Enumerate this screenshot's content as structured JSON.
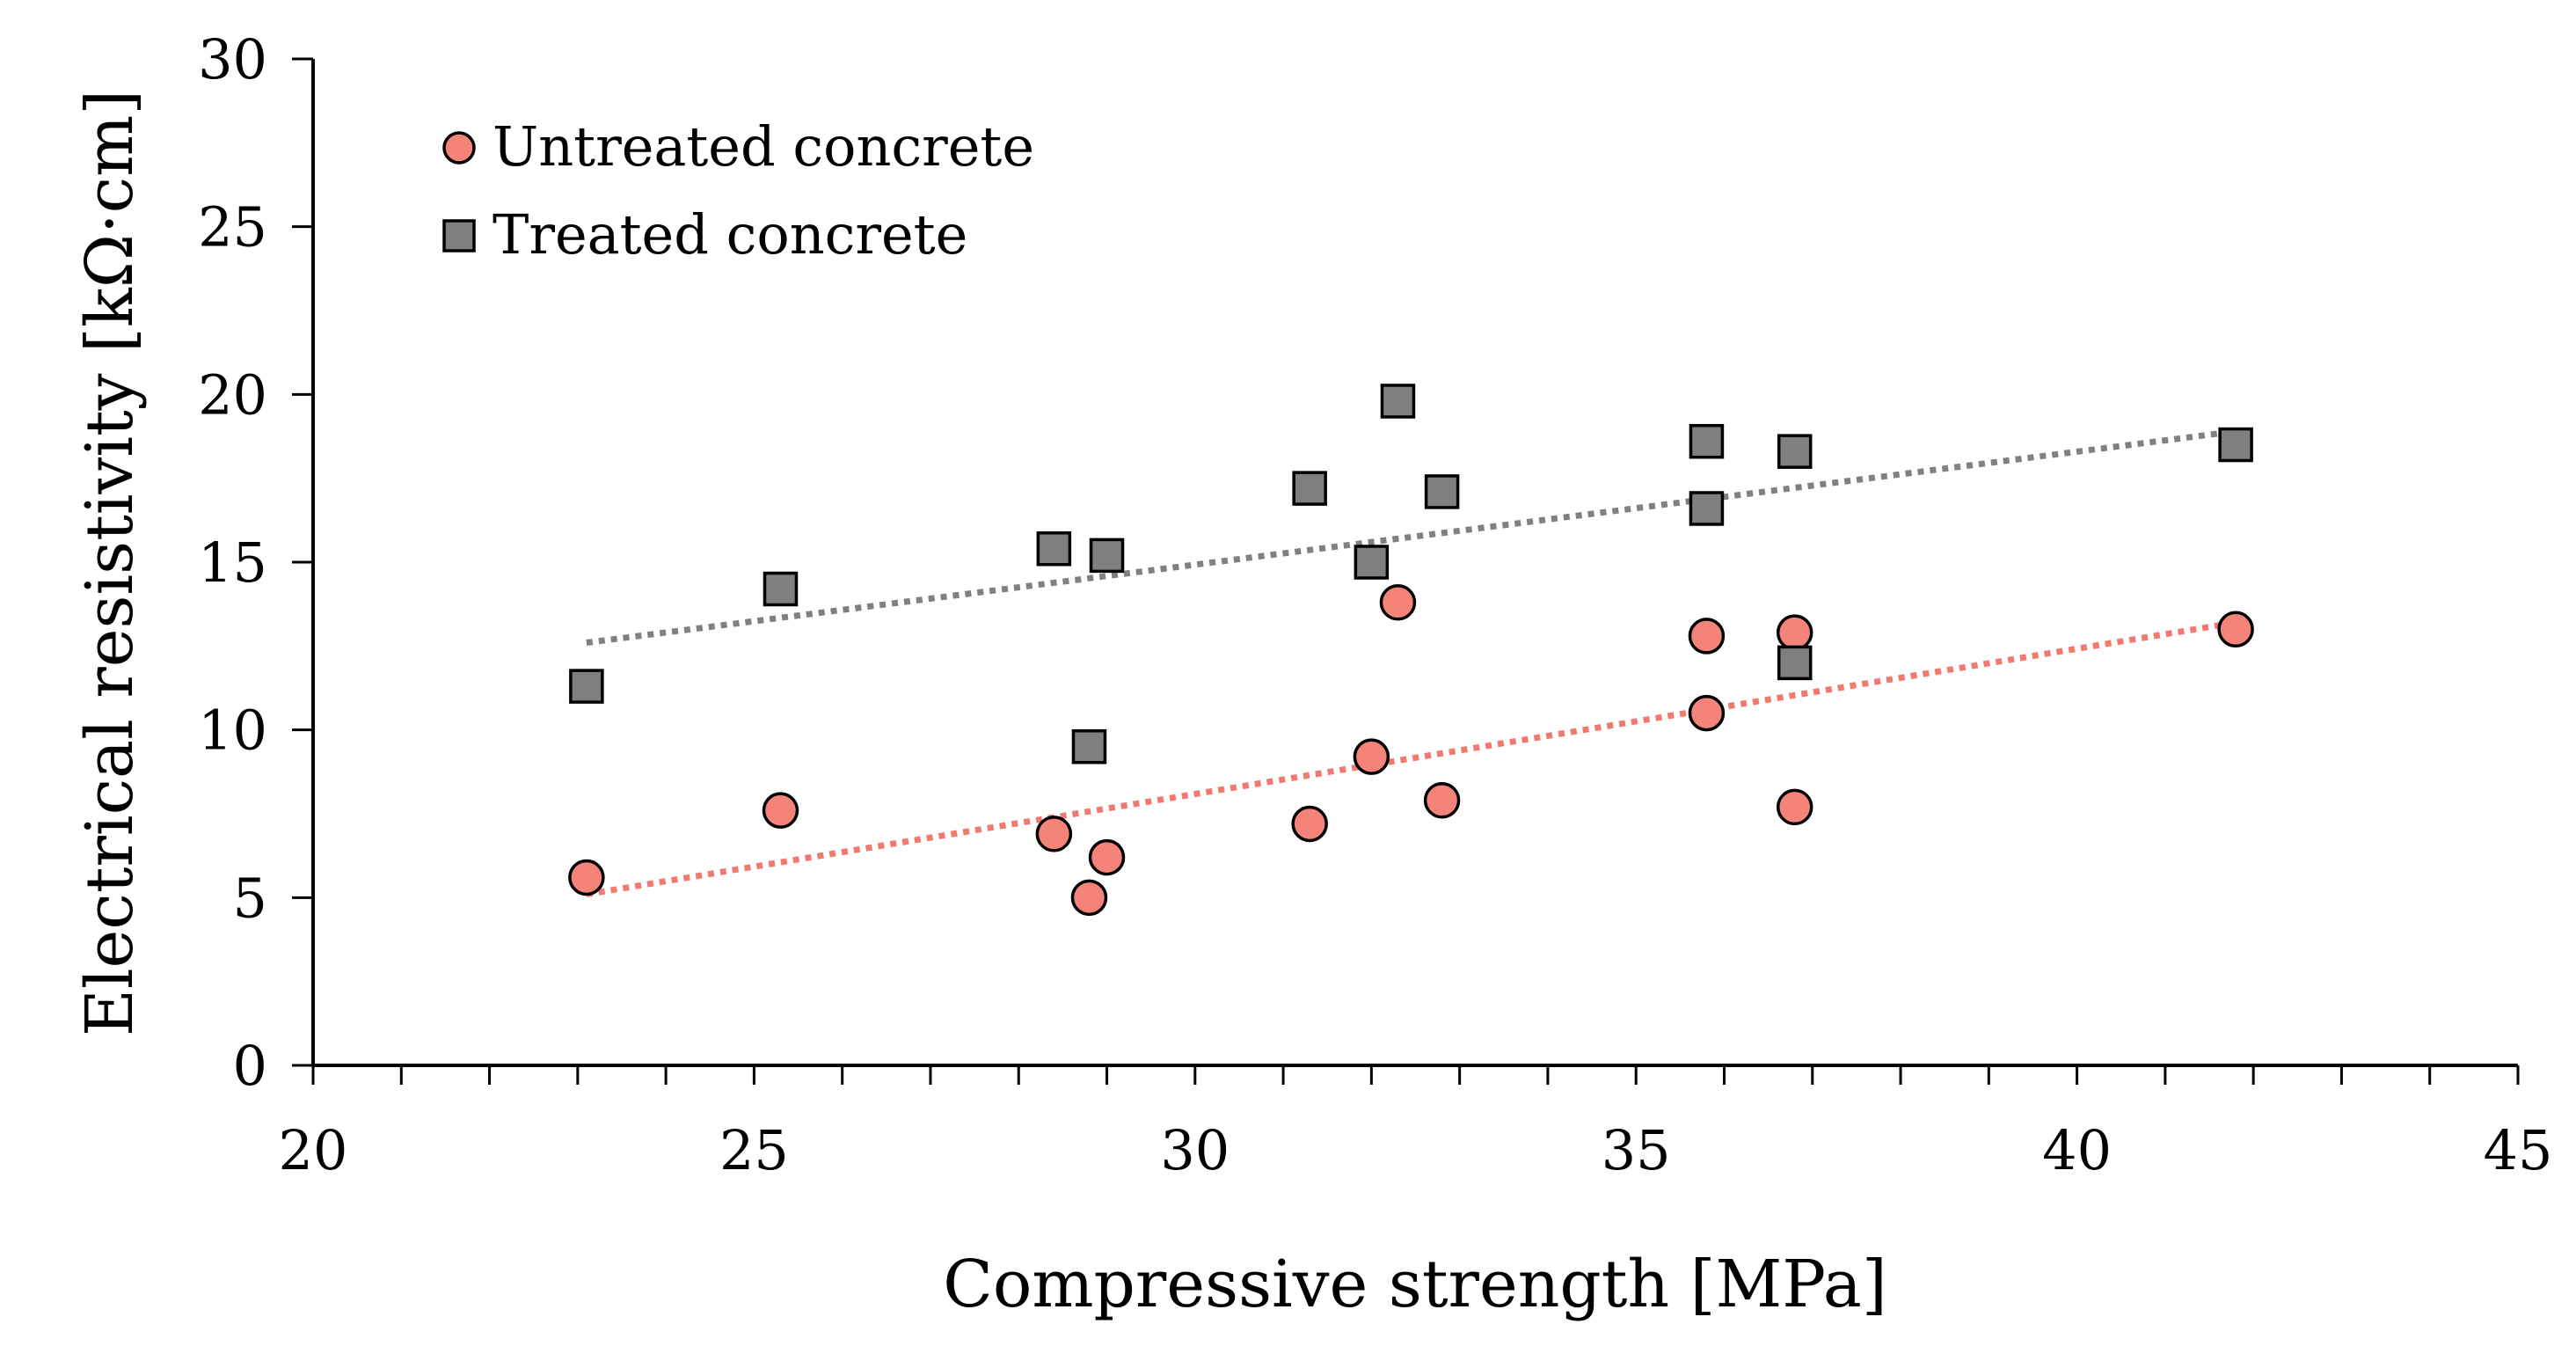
{
  "chart_data": {
    "type": "scatter",
    "title": "",
    "xlabel": "Compressive strength [MPa]",
    "ylabel": "Electrical resistivity [kΩ·cm]",
    "xlim": [
      20,
      45
    ],
    "ylim": [
      0,
      30
    ],
    "xticks": [
      20,
      25,
      30,
      35,
      40,
      45
    ],
    "yticks": [
      0,
      5,
      10,
      15,
      20,
      25,
      30
    ],
    "x_minor_step": 1,
    "grid": false,
    "legend_position": "top-left",
    "series": [
      {
        "name": "Untreated concrete",
        "marker": "circle",
        "color": "#F4847A",
        "trend_color": "#F07A70",
        "trendline": {
          "type": "linear",
          "x": [
            23.1,
            41.8
          ],
          "y": [
            5.1,
            13.2
          ]
        },
        "points": [
          {
            "x": 23.1,
            "y": 5.6
          },
          {
            "x": 25.3,
            "y": 7.6
          },
          {
            "x": 28.4,
            "y": 6.9
          },
          {
            "x": 28.8,
            "y": 5.0
          },
          {
            "x": 29.0,
            "y": 6.2
          },
          {
            "x": 31.3,
            "y": 7.2
          },
          {
            "x": 32.0,
            "y": 9.2
          },
          {
            "x": 32.3,
            "y": 13.8
          },
          {
            "x": 32.8,
            "y": 7.9
          },
          {
            "x": 35.8,
            "y": 12.8
          },
          {
            "x": 35.8,
            "y": 10.5
          },
          {
            "x": 36.8,
            "y": 12.9
          },
          {
            "x": 36.8,
            "y": 7.7
          },
          {
            "x": 41.8,
            "y": 13.0
          }
        ]
      },
      {
        "name": "Treated concrete",
        "marker": "square",
        "color": "#7F7F7F",
        "trend_color": "#808080",
        "trendline": {
          "type": "linear",
          "x": [
            23.1,
            41.8
          ],
          "y": [
            12.6,
            18.9
          ]
        },
        "points": [
          {
            "x": 23.1,
            "y": 11.3
          },
          {
            "x": 25.3,
            "y": 14.2
          },
          {
            "x": 28.4,
            "y": 15.4
          },
          {
            "x": 28.8,
            "y": 9.5
          },
          {
            "x": 29.0,
            "y": 15.2
          },
          {
            "x": 31.3,
            "y": 17.2
          },
          {
            "x": 32.0,
            "y": 15.0
          },
          {
            "x": 32.3,
            "y": 19.8
          },
          {
            "x": 32.8,
            "y": 17.1
          },
          {
            "x": 35.8,
            "y": 18.6
          },
          {
            "x": 35.8,
            "y": 16.6
          },
          {
            "x": 36.8,
            "y": 18.3
          },
          {
            "x": 36.8,
            "y": 12.0
          },
          {
            "x": 41.8,
            "y": 18.5
          }
        ]
      }
    ]
  }
}
